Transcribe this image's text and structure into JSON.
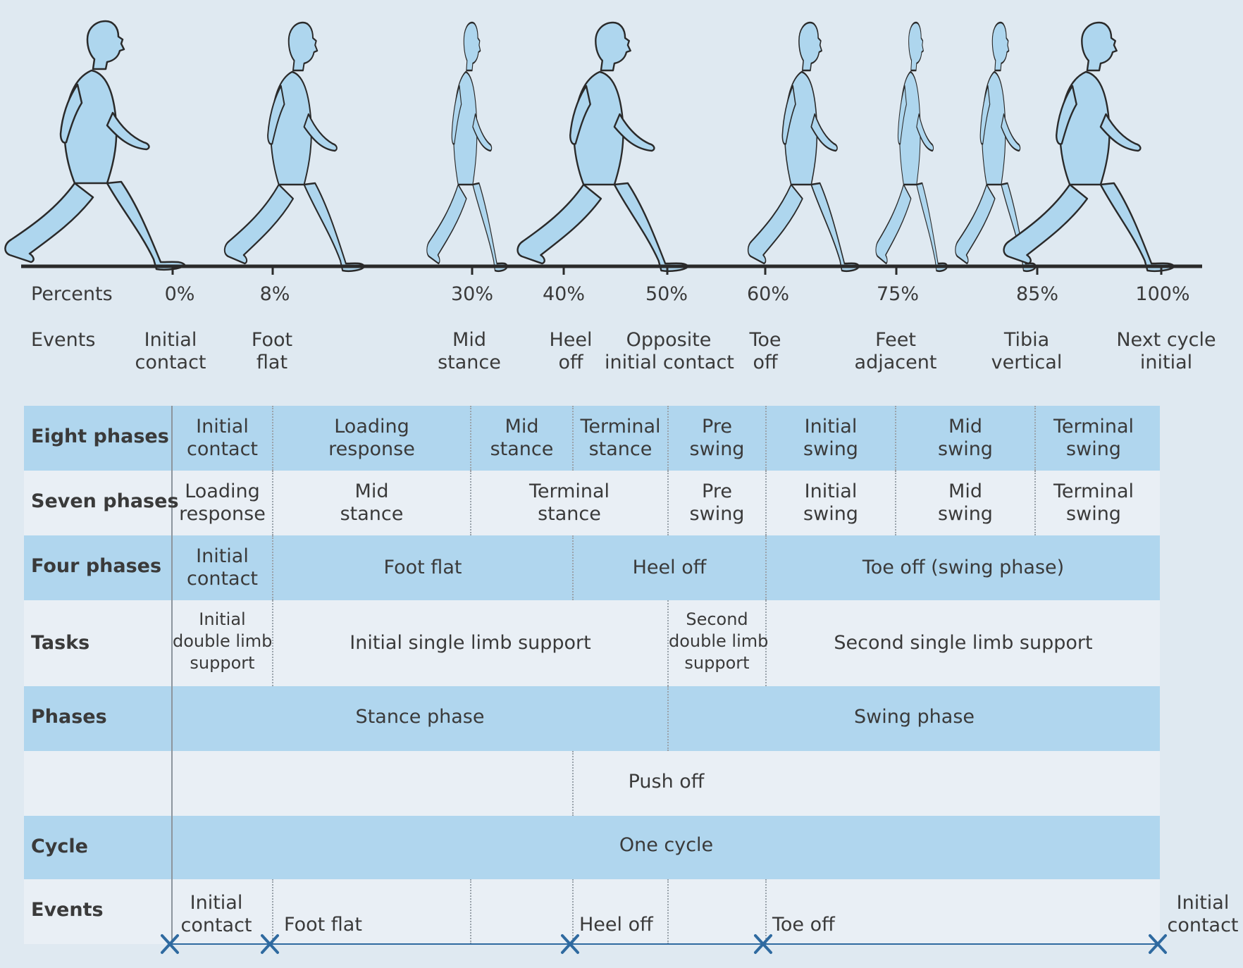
{
  "top": {
    "percents_label": "Percents",
    "events_label": "Events",
    "percents": [
      "0%",
      "8%",
      "30%",
      "40%",
      "50%",
      "60%",
      "75%",
      "85%",
      "100%"
    ],
    "events": [
      [
        "Initial",
        "contact"
      ],
      [
        "Foot",
        "flat"
      ],
      [
        "Mid",
        "stance"
      ],
      [
        "Heel",
        "off"
      ],
      [
        "Opposite",
        "initial contact"
      ],
      [
        "Toe",
        "off"
      ],
      [
        "Feet",
        "adjacent"
      ],
      [
        "Tibia",
        "vertical"
      ],
      [
        "Next cycle",
        "initial"
      ]
    ]
  },
  "table": {
    "eight_phases": {
      "label": "Eight phases",
      "cells": [
        [
          "Initial",
          "contact"
        ],
        [
          "Loading",
          "response"
        ],
        [
          "Mid",
          "stance"
        ],
        [
          "Terminal",
          "stance"
        ],
        [
          "Pre",
          "swing"
        ],
        [
          "Initial",
          "swing"
        ],
        [
          "Mid",
          "swing"
        ],
        [
          "Terminal",
          "swing"
        ]
      ]
    },
    "seven_phases": {
      "label": "Seven phases",
      "cells": [
        [
          "Loading",
          "response"
        ],
        [
          "Mid",
          "stance"
        ],
        [
          "Terminal",
          "stance"
        ],
        [
          "Pre",
          "swing"
        ],
        [
          "Initial",
          "swing"
        ],
        [
          "Mid",
          "swing"
        ],
        [
          "Terminal",
          "swing"
        ]
      ]
    },
    "four_phases": {
      "label": "Four phases",
      "cells": [
        [
          "Initial",
          "contact"
        ],
        [
          "Foot flat"
        ],
        [
          "Heel off"
        ],
        [
          "Toe off (swing phase)"
        ]
      ]
    },
    "tasks": {
      "label": "Tasks",
      "cells": [
        [
          "Initial",
          "double limb",
          "support"
        ],
        [
          "Initial single limb support"
        ],
        [
          "Second",
          "double limb",
          "support"
        ],
        [
          "Second single limb support"
        ]
      ]
    },
    "phases": {
      "label": "Phases",
      "cells": [
        "Stance phase",
        "Swing phase"
      ]
    },
    "push_off": {
      "label": "",
      "cell": "Push off"
    },
    "cycle": {
      "label": "Cycle",
      "cell": "One cycle"
    },
    "events": {
      "label": "Events",
      "initial_contact": [
        "Initial",
        "contact"
      ],
      "foot_flat": "Foot flat",
      "heel_off": "Heel off",
      "toe_off": "Toe off",
      "end_contact": [
        "Initial",
        "contact"
      ]
    }
  },
  "colors": {
    "figure_fill": "#aed6ee",
    "figure_stroke": "#2a2a2a",
    "row_dark": "#b0d6ee",
    "row_light": "#e9eff5",
    "marker": "#2f6aa0",
    "background": "#dfe9f1"
  }
}
